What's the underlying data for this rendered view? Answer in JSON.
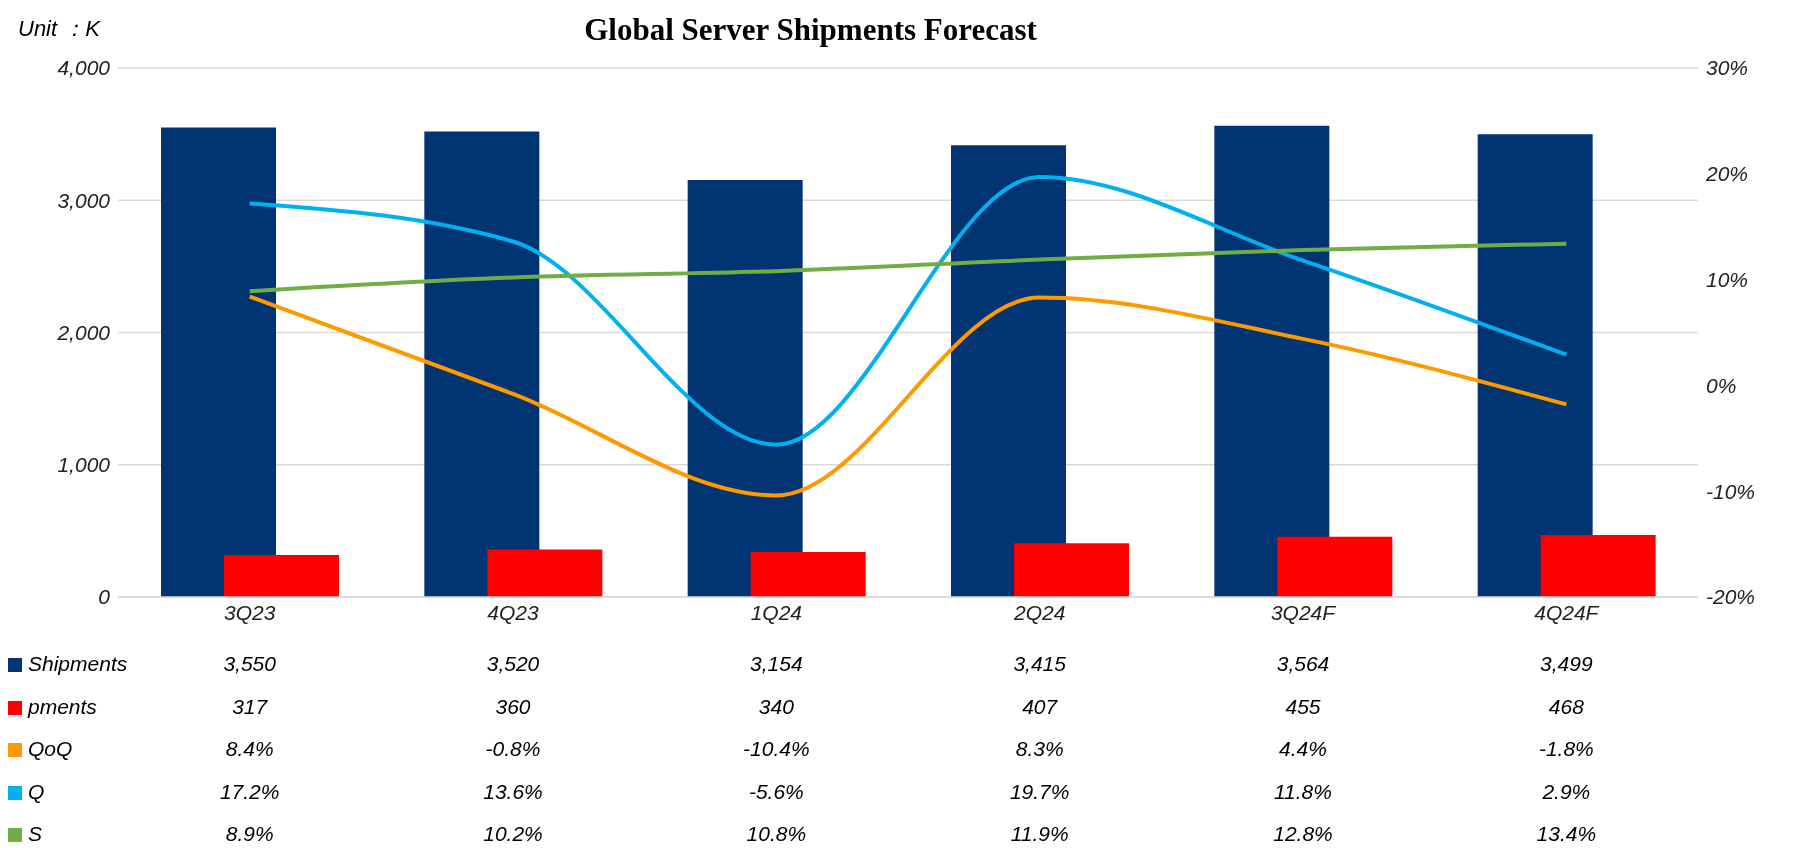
{
  "chart_data": {
    "type": "bar",
    "title": "Global Server Shipments Forecast",
    "ylabel": "Unit ：K",
    "categories": [
      "3Q23",
      "4Q23",
      "1Q24",
      "2Q24",
      "3Q24F",
      "4Q24F"
    ],
    "series": [
      {
        "name": "Shipments",
        "color": "#003473",
        "values": [
          3550,
          3520,
          3154,
          3415,
          3564,
          3499
        ],
        "value_labels": [
          "3,550",
          "3,520",
          "3,154",
          "3,415",
          "3,564",
          "3,499"
        ]
      },
      {
        "name": "pments",
        "color": "#ff0000",
        "values": [
          317,
          360,
          340,
          407,
          455,
          468
        ],
        "value_labels": [
          "317",
          "360",
          "340",
          "407",
          "455",
          "468"
        ]
      },
      {
        "name": "QoQ",
        "type": "line",
        "axis": "y2",
        "color": "#ff9900",
        "values": [
          8.4,
          -0.8,
          -10.4,
          8.3,
          4.4,
          -1.8
        ],
        "value_labels": [
          "8.4%",
          "-0.8%",
          "-10.4%",
          "8.3%",
          "4.4%",
          "-1.8%"
        ]
      },
      {
        "name": "Q",
        "type": "line",
        "axis": "y2",
        "color": "#00b0f0",
        "values": [
          17.2,
          13.6,
          -5.6,
          19.7,
          11.8,
          2.9
        ],
        "value_labels": [
          "17.2%",
          "13.6%",
          "-5.6%",
          "19.7%",
          "11.8%",
          "2.9%"
        ]
      },
      {
        "name": "S",
        "type": "line",
        "axis": "y2",
        "color": "#70ad47",
        "values": [
          8.9,
          10.2,
          10.8,
          11.9,
          12.8,
          13.4
        ],
        "value_labels": [
          "8.9%",
          "10.2%",
          "10.8%",
          "11.9%",
          "12.8%",
          "13.4%"
        ]
      }
    ],
    "ylim": [
      0,
      4000
    ],
    "yticks": [
      {
        "value": 0,
        "label": "0"
      },
      {
        "value": 1000,
        "label": "1,000"
      },
      {
        "value": 2000,
        "label": "2,000"
      },
      {
        "value": 3000,
        "label": "3,000"
      },
      {
        "value": 4000,
        "label": "4,000"
      }
    ],
    "y2lim": [
      -20,
      30
    ],
    "y2ticks": [
      {
        "value": -20,
        "label": "-20%"
      },
      {
        "value": -10,
        "label": "-10%"
      },
      {
        "value": 0,
        "label": "0%"
      },
      {
        "value": 10,
        "label": "10%"
      },
      {
        "value": 20,
        "label": "20%"
      },
      {
        "value": 30,
        "label": "30%"
      }
    ],
    "grid": "y",
    "legend": "bottom",
    "marker": "none",
    "line_style": "solid"
  }
}
